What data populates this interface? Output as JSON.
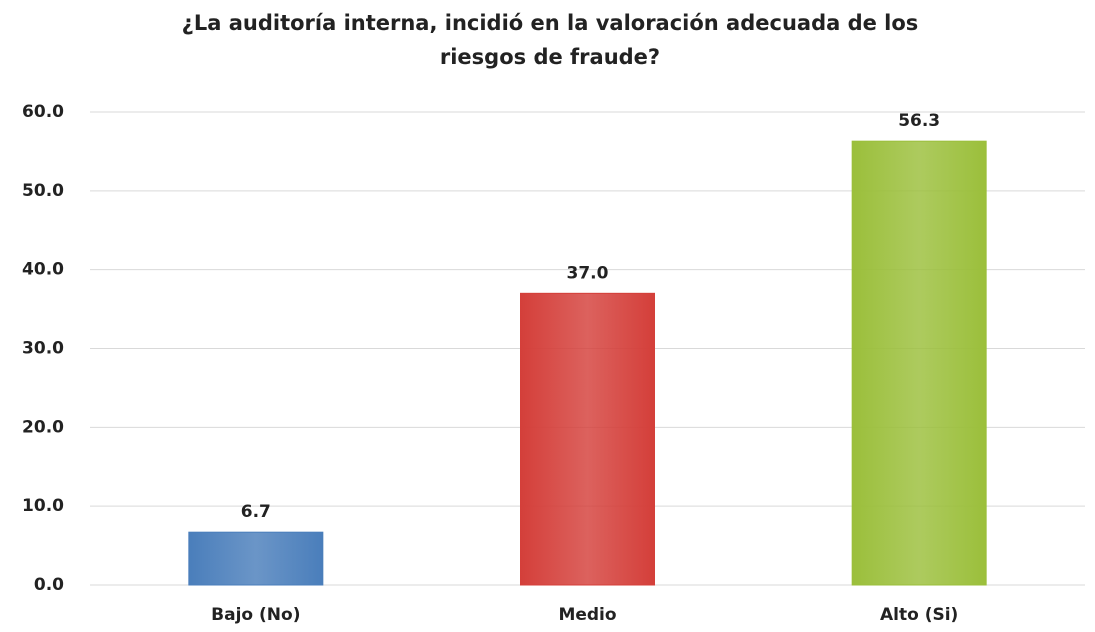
{
  "chart_data": {
    "type": "bar",
    "title": "¿La auditoría interna, incidió en la valoración adecuada de los riesgos de fraude?",
    "categories": [
      "Bajo (No)",
      "Medio",
      "Alto (Si)"
    ],
    "values": [
      6.7,
      37.0,
      56.3
    ],
    "value_labels": [
      "6.7",
      "37.0",
      "56.3"
    ],
    "colors": [
      "#4a7ebb",
      "#d43f3a",
      "#9bbf3b"
    ],
    "ylim": [
      0,
      60
    ],
    "yticks": [
      {
        "value": 0,
        "label": "0.0"
      },
      {
        "value": 10,
        "label": "10.0"
      },
      {
        "value": 20,
        "label": "20.0"
      },
      {
        "value": 30,
        "label": "30.0"
      },
      {
        "value": 40,
        "label": "40.0"
      },
      {
        "value": 50,
        "label": "50.0"
      },
      {
        "value": 60,
        "label": "60.0"
      }
    ],
    "grid": true
  }
}
